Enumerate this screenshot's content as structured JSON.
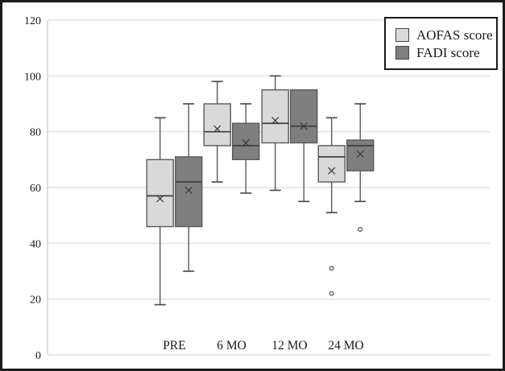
{
  "chart_data": {
    "type": "box",
    "title": "",
    "xlabel": "",
    "ylabel": "",
    "categories": [
      "PRE",
      "6 MO",
      "12 MO",
      "24 MO"
    ],
    "ylim": [
      0,
      120
    ],
    "yticks": [
      0,
      20,
      40,
      60,
      80,
      100,
      120
    ],
    "grid": true,
    "legend_position": "top-right",
    "colors": {
      "aofas_fill": "#d9d9d9",
      "fadi_fill": "#7f7f7f",
      "box_border": "#595959",
      "whisker": "#4d4d4d",
      "median": "#3f3f3f",
      "mean_marker": "#3c3c3c",
      "gridline": "#d9d9d9",
      "axis_line": "#c9c9c9",
      "text": "#1a1a1a",
      "background": "#ffffff",
      "frame": "#1b1b1b"
    },
    "series": [
      {
        "name": "AOFAS score",
        "fill": "#d9d9d9",
        "boxes": [
          {
            "category": "PRE",
            "min": 18,
            "q1": 46,
            "median": 57,
            "mean": 56,
            "q3": 70,
            "max": 85,
            "outliers": []
          },
          {
            "category": "6 MO",
            "min": 62,
            "q1": 75,
            "median": 80,
            "mean": 81,
            "q3": 90,
            "max": 98,
            "outliers": []
          },
          {
            "category": "12 MO",
            "min": 59,
            "q1": 76,
            "median": 83,
            "mean": 84,
            "q3": 95,
            "max": 100,
            "outliers": []
          },
          {
            "category": "24 MO",
            "min": 51,
            "q1": 62,
            "median": 71,
            "mean": 66,
            "q3": 75,
            "max": 85,
            "outliers": [
              31,
              22
            ]
          }
        ]
      },
      {
        "name": "FADI score",
        "fill": "#7f7f7f",
        "boxes": [
          {
            "category": "PRE",
            "min": 30,
            "q1": 46,
            "median": 62,
            "mean": 59,
            "q3": 71,
            "max": 90,
            "outliers": []
          },
          {
            "category": "6 MO",
            "min": 58,
            "q1": 70,
            "median": 75,
            "mean": 76,
            "q3": 83,
            "max": 90,
            "outliers": []
          },
          {
            "category": "12 MO",
            "min": 55,
            "q1": 76,
            "median": 82,
            "mean": 82,
            "q3": 95,
            "max": 95,
            "outliers": []
          },
          {
            "category": "24 MO",
            "min": 55,
            "q1": 66,
            "median": 75,
            "mean": 72,
            "q3": 77,
            "max": 90,
            "outliers": [
              45
            ]
          }
        ]
      }
    ]
  }
}
